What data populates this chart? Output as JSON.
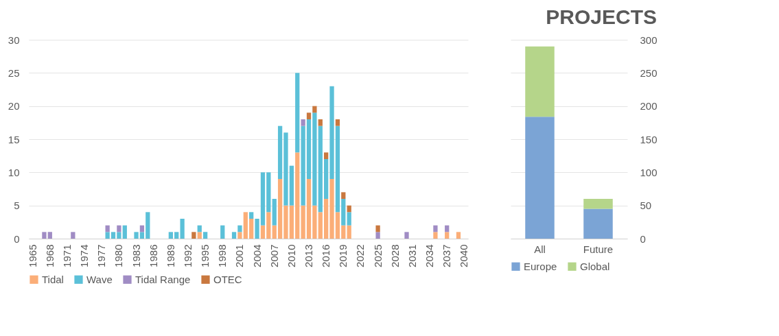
{
  "chart_data": [
    {
      "type": "bar",
      "stacked": true,
      "grid": "y",
      "legend": "bottom",
      "categories": [
        "1965",
        null,
        null,
        "1968",
        null,
        null,
        "1971",
        null,
        null,
        "1974",
        null,
        null,
        "1977",
        null,
        null,
        "1980",
        null,
        null,
        "1983",
        null,
        null,
        "1986",
        null,
        null,
        "1989",
        null,
        null,
        "1992",
        null,
        null,
        "1995",
        null,
        null,
        "1998",
        null,
        null,
        "2001",
        null,
        null,
        "2004",
        null,
        null,
        "2007",
        null,
        null,
        "2010",
        null,
        null,
        "2013",
        null,
        null,
        "2016",
        null,
        null,
        "2019",
        null,
        null,
        "2022",
        null,
        null,
        "2025",
        null,
        null,
        "2028",
        null,
        null,
        "2031",
        null,
        null,
        "2034",
        null,
        null,
        "2037",
        null,
        null,
        "2040"
      ],
      "ylim": [
        0,
        30
      ],
      "yticks": [
        0,
        5,
        10,
        15,
        20,
        25,
        30
      ],
      "series": [
        {
          "name": "Tidal",
          "color": "#fbae78",
          "values": [
            null,
            null,
            null,
            null,
            null,
            null,
            null,
            null,
            null,
            null,
            null,
            null,
            null,
            null,
            null,
            null,
            null,
            null,
            null,
            null,
            null,
            null,
            null,
            null,
            null,
            null,
            null,
            null,
            null,
            1,
            null,
            null,
            null,
            null,
            null,
            null,
            1,
            4,
            3,
            null,
            2,
            4,
            2,
            9,
            5,
            5,
            13,
            5,
            9,
            5,
            4,
            6,
            9,
            4,
            2,
            2,
            null,
            null,
            null,
            null,
            null,
            null,
            null,
            null,
            null,
            null,
            null,
            null,
            null,
            null,
            1,
            null,
            1,
            null,
            1,
            null
          ]
        },
        {
          "name": "Wave",
          "color": "#5bc0d8",
          "values": [
            null,
            null,
            null,
            null,
            null,
            null,
            null,
            null,
            null,
            null,
            null,
            null,
            null,
            1,
            1,
            1,
            2,
            null,
            1,
            1,
            4,
            null,
            null,
            null,
            1,
            1,
            3,
            null,
            null,
            1,
            1,
            null,
            null,
            2,
            null,
            1,
            1,
            null,
            1,
            3,
            8,
            6,
            4,
            8,
            11,
            6,
            12,
            12,
            9,
            14,
            13,
            6,
            14,
            13,
            4,
            2,
            null,
            null,
            null,
            null,
            null,
            null,
            null,
            null,
            null,
            null,
            null,
            null,
            null,
            null,
            null,
            null,
            null,
            null,
            null,
            null
          ]
        },
        {
          "name": "Tidal Range",
          "color": "#a08cc4",
          "values": [
            null,
            null,
            1,
            1,
            null,
            null,
            null,
            1,
            null,
            null,
            null,
            null,
            null,
            1,
            null,
            1,
            null,
            null,
            null,
            1,
            null,
            null,
            null,
            null,
            null,
            null,
            null,
            null,
            null,
            null,
            null,
            null,
            null,
            null,
            null,
            null,
            null,
            null,
            null,
            null,
            null,
            null,
            null,
            null,
            null,
            null,
            null,
            1,
            null,
            null,
            null,
            null,
            null,
            null,
            null,
            null,
            null,
            null,
            null,
            null,
            1,
            null,
            null,
            null,
            null,
            1,
            null,
            null,
            null,
            null,
            1,
            null,
            1,
            null,
            null,
            null
          ]
        },
        {
          "name": "OTEC",
          "color": "#c9783f",
          "values": [
            null,
            null,
            null,
            null,
            null,
            null,
            null,
            null,
            null,
            null,
            null,
            null,
            null,
            null,
            null,
            null,
            null,
            null,
            null,
            null,
            null,
            null,
            null,
            null,
            null,
            null,
            null,
            null,
            1,
            null,
            null,
            null,
            null,
            null,
            null,
            null,
            null,
            null,
            null,
            null,
            null,
            null,
            null,
            null,
            null,
            null,
            null,
            null,
            1,
            1,
            1,
            1,
            null,
            1,
            1,
            1,
            null,
            null,
            null,
            null,
            1,
            null,
            null,
            null,
            null,
            null,
            null,
            null,
            null,
            null,
            null,
            null,
            null,
            null,
            null,
            null
          ]
        }
      ]
    },
    {
      "type": "bar",
      "stacked": true,
      "grid": "y",
      "legend": "bottom",
      "title": "PROJECTS",
      "categories": [
        "All",
        "Future"
      ],
      "y2lim": [
        0,
        300
      ],
      "y2ticks": [
        0,
        50,
        100,
        150,
        200,
        250,
        300
      ],
      "series": [
        {
          "name": "Europe",
          "color": "#7ba4d5",
          "axis": "y2",
          "values": [
            184,
            45
          ]
        },
        {
          "name": "Global",
          "color": "#b5d58a",
          "axis": "y2",
          "values": [
            106,
            15
          ]
        }
      ]
    }
  ]
}
